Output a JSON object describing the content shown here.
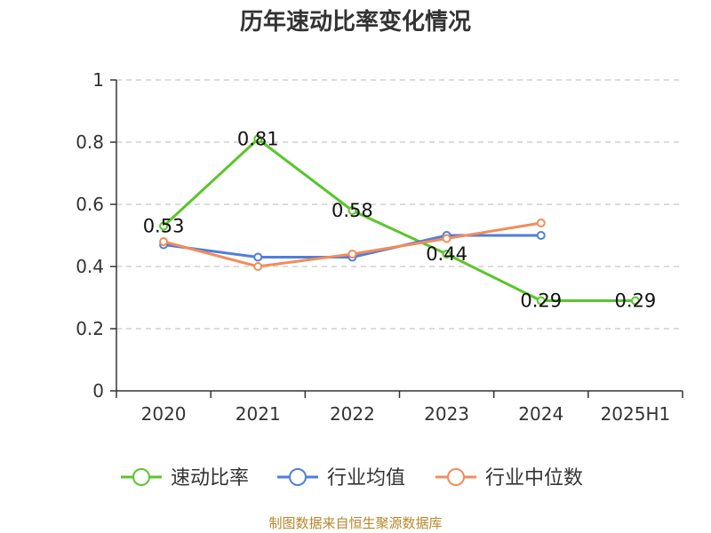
{
  "header": {
    "title": "历年速动比率变化情况"
  },
  "footer": {
    "source": "制图数据来自恒生聚源数据库"
  },
  "colors": {
    "series_1": "#5cc52c",
    "series_2": "#4f7fd9",
    "series_3": "#f28c5b"
  },
  "chart_data": {
    "type": "line",
    "title": "历年速动比率变化情况",
    "categories": [
      "2020",
      "2021",
      "2022",
      "2023",
      "2024",
      "2025H1"
    ],
    "y_ticks": [
      "0",
      "0.2",
      "0.4",
      "0.6",
      "0.8",
      "1"
    ],
    "ylim": [
      0,
      1
    ],
    "grid": true,
    "legend_position": "bottom",
    "series": [
      {
        "name": "速动比率",
        "color": "#5cc52c",
        "values": [
          0.53,
          0.81,
          0.58,
          0.44,
          0.29,
          0.29
        ],
        "labels": [
          "0.53",
          "0.81",
          "0.58",
          "0.44",
          "0.29",
          "0.29"
        ]
      },
      {
        "name": "行业均值",
        "color": "#4f7fd9",
        "values": [
          0.47,
          0.43,
          0.43,
          0.5,
          0.5,
          null
        ]
      },
      {
        "name": "行业中位数",
        "color": "#f28c5b",
        "values": [
          0.48,
          0.4,
          0.44,
          0.49,
          0.54,
          null
        ]
      }
    ]
  }
}
